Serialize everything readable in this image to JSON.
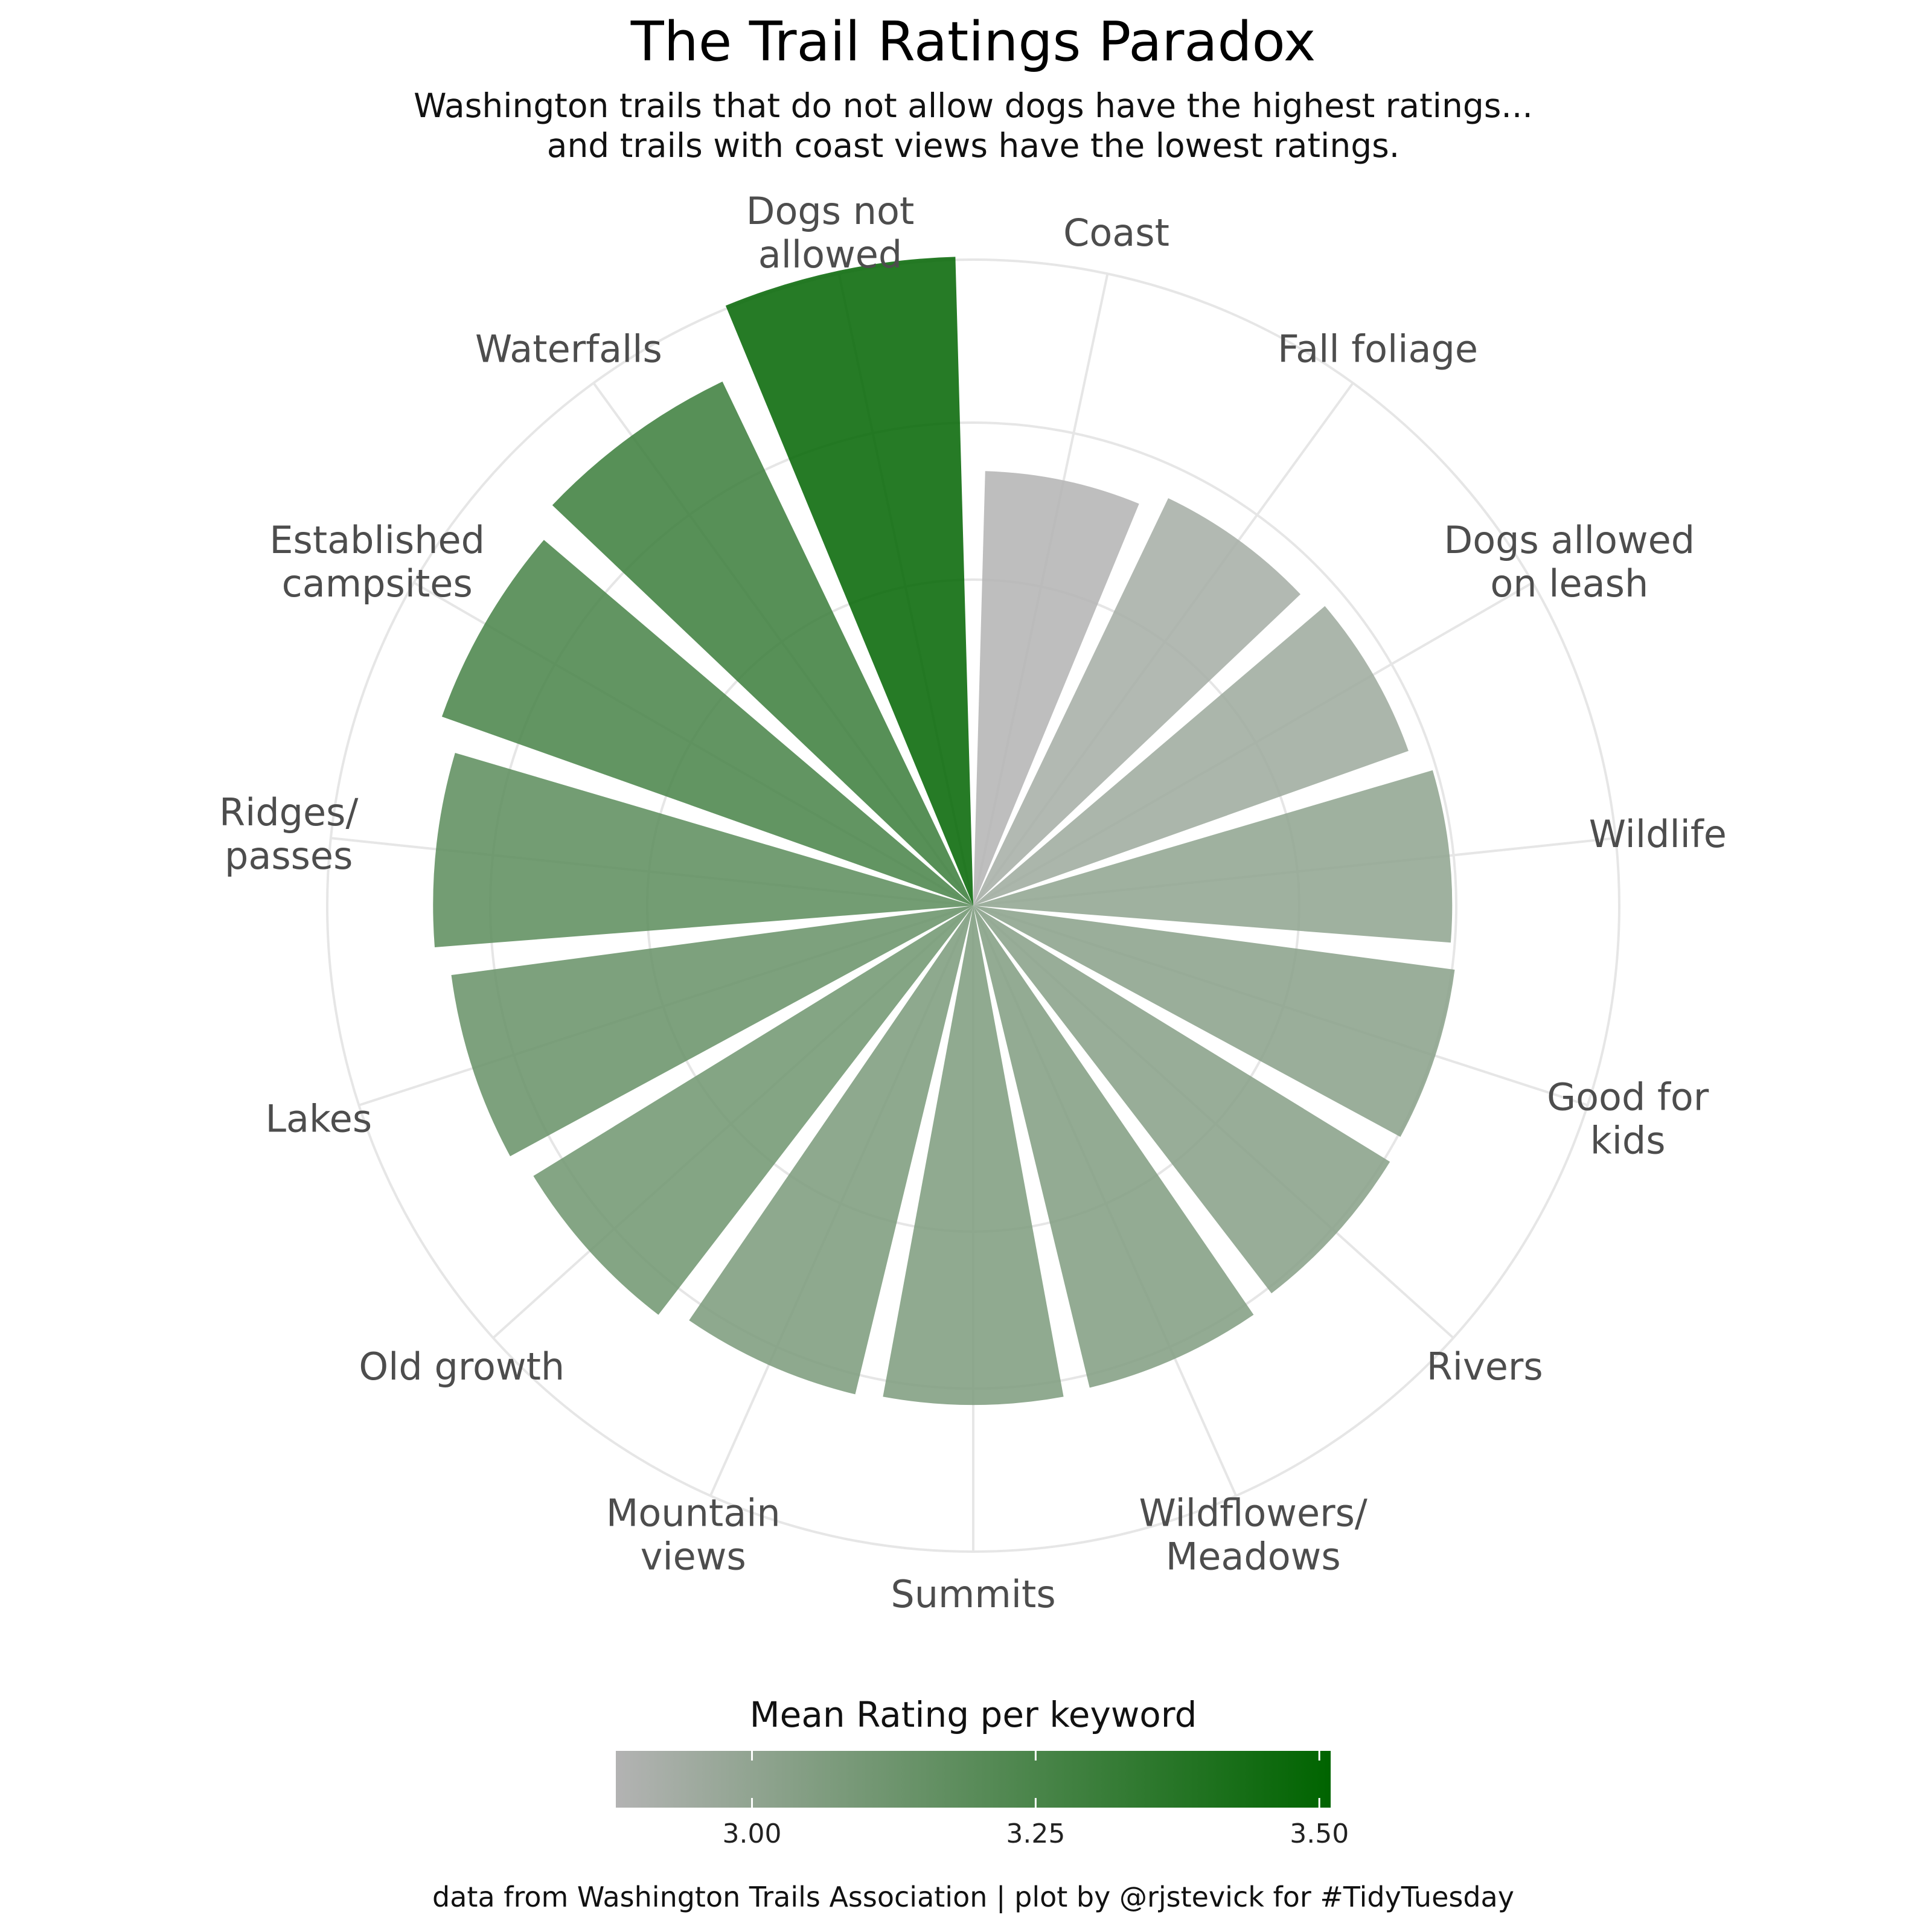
{
  "title": "The Trail Ratings Paradox",
  "subtitle": [
    "Washington trails that do not allow dogs have the highest ratings...",
    "and trails with coast views have the lowest ratings."
  ],
  "caption": "data from Washington Trails Association | plot by @rjstevick for #TidyTuesday",
  "colors": {
    "low": "#b3b3b3",
    "high": "#006400",
    "grid": "#e6e6e6"
  },
  "chart_data": {
    "type": "bar",
    "polar": true,
    "categories": [
      "Coast",
      "Fall foliage",
      "Dogs allowed on leash",
      "Wildlife",
      "Good for kids",
      "Rivers",
      "Wildflowers/ Meadows",
      "Summits",
      "Mountain views",
      "Old growth",
      "Lakes",
      "Ridges/ passes",
      "Established campsites",
      "Waterfalls",
      "Dogs not allowed"
    ],
    "label_lines": [
      [
        "Coast"
      ],
      [
        "Fall foliage"
      ],
      [
        "Dogs allowed",
        "on leash"
      ],
      [
        "Wildlife"
      ],
      [
        "Good for",
        "kids"
      ],
      [
        "Rivers"
      ],
      [
        "Wildflowers/",
        "Meadows"
      ],
      [
        "Summits"
      ],
      [
        "Mountain",
        "views"
      ],
      [
        "Old growth"
      ],
      [
        "Lakes"
      ],
      [
        "Ridges/",
        "passes"
      ],
      [
        "Established",
        "campsites"
      ],
      [
        "Waterfalls"
      ],
      [
        "Dogs not",
        "allowed"
      ]
    ],
    "values": [
      2.88,
      2.93,
      2.96,
      3.01,
      3.03,
      3.04,
      3.06,
      3.07,
      3.08,
      3.12,
      3.15,
      3.19,
      3.26,
      3.31,
      3.51
    ],
    "legend": {
      "title": "Mean Rating per keyword",
      "ticks": [
        3.0,
        3.25,
        3.5
      ],
      "tick_labels": [
        "3.00",
        "3.25",
        "3.50"
      ],
      "range": [
        2.88,
        3.51
      ],
      "placement": "bottom"
    },
    "grid": true
  }
}
